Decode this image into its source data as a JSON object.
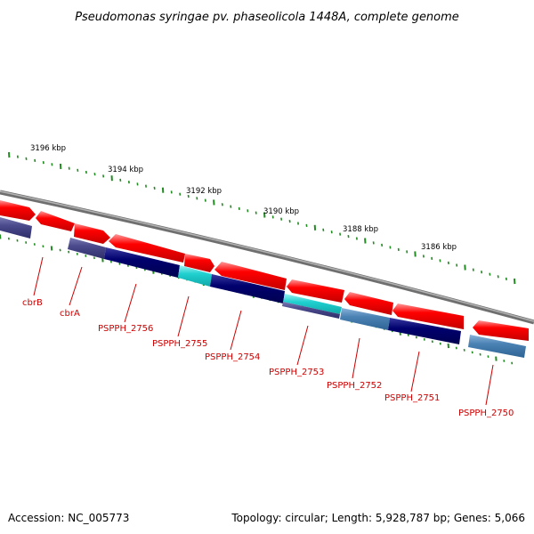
{
  "title": "Pseudomonas syringae pv. phaseolicola 1448A, complete genome",
  "accession": "Accession: NC_005773",
  "topology": "Topology: circular; Length: 5,928,787 bp; Genes: 5,066",
  "scale_labels": [
    "3196 kbp",
    "3194 kbp",
    "3192 kbp",
    "3190 kbp",
    "3188 kbp",
    "3186 kbp"
  ],
  "gene_labels": [
    "cbrB",
    "cbrA",
    "PSPPH_2756",
    "PSPPH_2755",
    "PSPPH_2754",
    "PSPPH_2753",
    "PSPPH_2752",
    "PSPPH_2751",
    "PSPPH_2750"
  ],
  "colors": {
    "backbone": "#808080",
    "gene_arrow": "#ff0000",
    "feature_navy": "#00006e",
    "feature_slate": "#4a4a8c",
    "feature_cyan": "#20d0d0",
    "feature_steel": "#4a82b4",
    "tick": "#228b22",
    "label_red": "#cc0000"
  }
}
